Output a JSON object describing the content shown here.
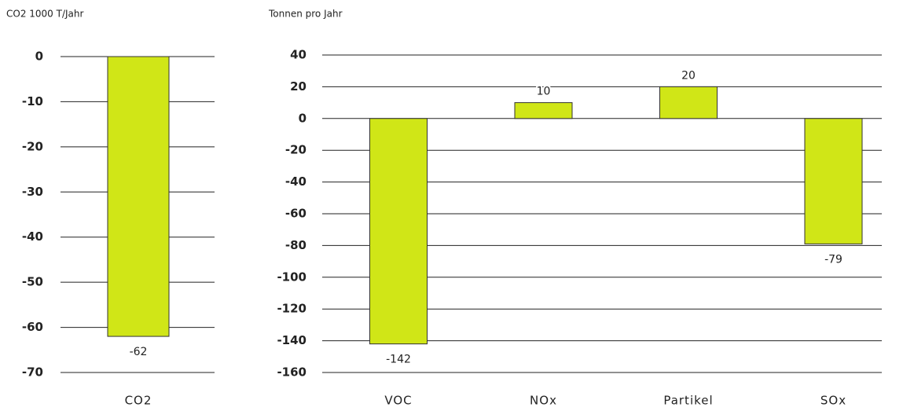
{
  "chart_data": [
    {
      "type": "bar",
      "y_label": "CO2 1000 T/Jahr",
      "categories": [
        "CO2"
      ],
      "values": [
        -62
      ],
      "color": "#d0e617",
      "ylim": [
        -70,
        0
      ],
      "yticks": [
        0,
        -10,
        -20,
        -30,
        -40,
        -50,
        -60,
        -70
      ],
      "grid": true
    },
    {
      "type": "bar",
      "y_label": "Tonnen pro Jahr",
      "categories": [
        "VOC",
        "NOx",
        "Partikel",
        "SOx"
      ],
      "values": [
        -142,
        10,
        20,
        -79
      ],
      "color": "#d0e617",
      "ylim": [
        -160,
        40
      ],
      "yticks": [
        40,
        20,
        0,
        -20,
        -40,
        -60,
        -80,
        -100,
        -120,
        -140,
        -160
      ],
      "grid": true
    }
  ]
}
